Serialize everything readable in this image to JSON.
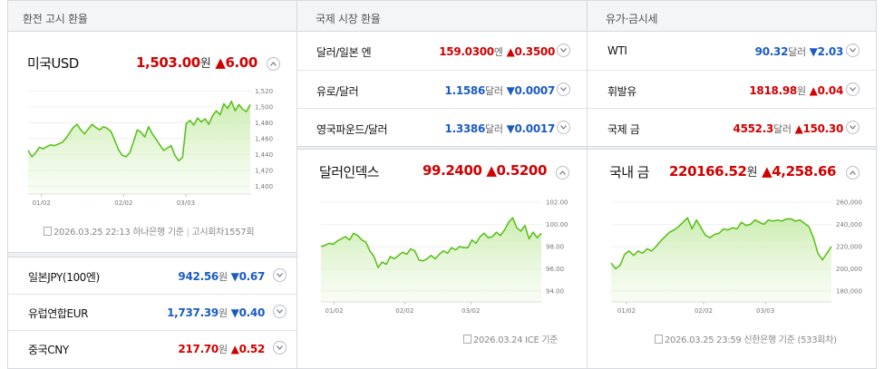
{
  "exchange": {
    "header": "환전 고시 환율",
    "usd": {
      "name": "미국USD",
      "value": "1,503.00",
      "unit": "원",
      "change": "▲6.00",
      "direction": "up"
    },
    "usd_source": {
      "date": "2026.03.25 22:13",
      "bank": "하나은행 기준",
      "round": "고시회차1557회"
    },
    "rows": [
      {
        "name": "일본JPY(100엔)",
        "value": "942.56",
        "unit": "원",
        "change": "▼0.67",
        "direction": "down"
      },
      {
        "name": "유럽연합EUR",
        "value": "1,737.39",
        "unit": "원",
        "change": "▼0.40",
        "direction": "down"
      },
      {
        "name": "중국CNY",
        "value": "217.70",
        "unit": "원",
        "change": "▲0.52",
        "direction": "up"
      }
    ]
  },
  "intl": {
    "header": "국제 시장 환율",
    "rows": [
      {
        "name": "달러/일본 엔",
        "value": "159.0300",
        "unit": "엔",
        "change": "▲0.3500",
        "direction": "up"
      },
      {
        "name": "유로/달러",
        "value": "1.1586",
        "unit": "달러",
        "change": "▼0.0007",
        "direction": "down"
      },
      {
        "name": "영국파운드/달러",
        "value": "1.3386",
        "unit": "달러",
        "change": "▼0.0017",
        "direction": "down"
      }
    ],
    "dxy": {
      "name": "달러인덱스",
      "value": "99.2400",
      "change": "▲0.5200",
      "direction": "up"
    },
    "dxy_source": "2026.03.24 ICE 기준"
  },
  "commodity": {
    "header": "유가·금시세",
    "rows": [
      {
        "name": "WTI",
        "value": "90.32",
        "unit": "달러",
        "change": "▼2.03",
        "direction": "down"
      },
      {
        "name": "휘발유",
        "value": "1818.98",
        "unit": "원",
        "change": "▲0.04",
        "direction": "up"
      },
      {
        "name": "국제 금",
        "value": "4552.3",
        "unit": "달러",
        "change": "▲150.30",
        "direction": "up"
      }
    ],
    "gold": {
      "name": "국내 금",
      "value": "220166.52",
      "unit": "원",
      "change": "▲4,258.66",
      "direction": "up"
    },
    "gold_source": "2026.03.25 23:59 신한은행 기준 (533회차)"
  },
  "colors": {
    "up": "#d20000",
    "down": "#1a5bc4",
    "chart_line": "#5cc11d",
    "chart_fill": "#e4f6d6"
  },
  "chart_data": [
    {
      "id": "usd",
      "type": "area",
      "ylim": [
        1390,
        1525
      ],
      "yticks": [
        "1,520",
        "1,500",
        "1,480",
        "1,460",
        "1,440",
        "1,420",
        "1,400"
      ],
      "ytick_values": [
        1520,
        1500,
        1480,
        1460,
        1440,
        1420,
        1400
      ],
      "xticks": [
        "01/02",
        "02/02",
        "03/03"
      ],
      "xtick_positions": [
        0.06,
        0.43,
        0.71
      ],
      "values": [
        1445,
        1437,
        1442,
        1449,
        1447,
        1450,
        1452,
        1451,
        1453,
        1455,
        1460,
        1467,
        1474,
        1478,
        1471,
        1466,
        1472,
        1478,
        1474,
        1471,
        1475,
        1473,
        1469,
        1458,
        1446,
        1439,
        1437,
        1442,
        1456,
        1471,
        1468,
        1462,
        1475,
        1466,
        1459,
        1452,
        1445,
        1448,
        1451,
        1439,
        1432,
        1436,
        1479,
        1483,
        1477,
        1486,
        1481,
        1485,
        1478,
        1489,
        1495,
        1490,
        1504,
        1498,
        1507,
        1495,
        1503,
        1497,
        1494,
        1503
      ]
    },
    {
      "id": "dxy",
      "type": "area",
      "ylim": [
        93.0,
        102.5
      ],
      "yticks": [
        "102.00",
        "100.00",
        "98.00",
        "96.00",
        "94.00"
      ],
      "ytick_values": [
        102.0,
        100.0,
        98.0,
        96.0,
        94.0
      ],
      "xticks": [
        "01/02",
        "02/02",
        "03/02"
      ],
      "xtick_positions": [
        0.06,
        0.38,
        0.68
      ],
      "values": [
        98.0,
        98.1,
        98.3,
        98.2,
        98.5,
        98.7,
        98.9,
        98.6,
        99.2,
        99.0,
        98.6,
        98.4,
        97.6,
        97.1,
        96.1,
        96.6,
        96.4,
        97.1,
        96.9,
        97.2,
        97.5,
        97.3,
        97.8,
        97.6,
        96.8,
        96.7,
        96.9,
        97.2,
        96.9,
        97.3,
        97.6,
        97.4,
        97.9,
        97.7,
        98.0,
        97.9,
        97.9,
        98.6,
        98.3,
        98.9,
        99.2,
        98.8,
        98.9,
        99.3,
        99.0,
        99.5,
        100.2,
        100.6,
        99.7,
        99.4,
        99.9,
        98.7,
        99.3,
        98.8,
        99.2
      ]
    },
    {
      "id": "gold",
      "type": "area",
      "ylim": [
        170000,
        265000
      ],
      "yticks": [
        "260,000",
        "240,000",
        "220,000",
        "200,000",
        "180,000"
      ],
      "ytick_values": [
        260000,
        240000,
        220000,
        200000,
        180000
      ],
      "xticks": [
        "01/02",
        "02/02",
        "03/03"
      ],
      "xtick_positions": [
        0.07,
        0.42,
        0.7
      ],
      "values": [
        205000,
        200000,
        203000,
        213000,
        216000,
        212000,
        216000,
        214000,
        218000,
        216000,
        220000,
        225000,
        229000,
        233000,
        235000,
        238000,
        242000,
        246000,
        236000,
        244000,
        237000,
        230000,
        228000,
        231000,
        232000,
        236000,
        235000,
        237000,
        236000,
        242000,
        239000,
        240000,
        244000,
        242000,
        240000,
        244000,
        243000,
        244000,
        243000,
        245000,
        245000,
        243000,
        244000,
        241000,
        238000,
        228000,
        214000,
        208000,
        214000,
        220000
      ]
    }
  ]
}
